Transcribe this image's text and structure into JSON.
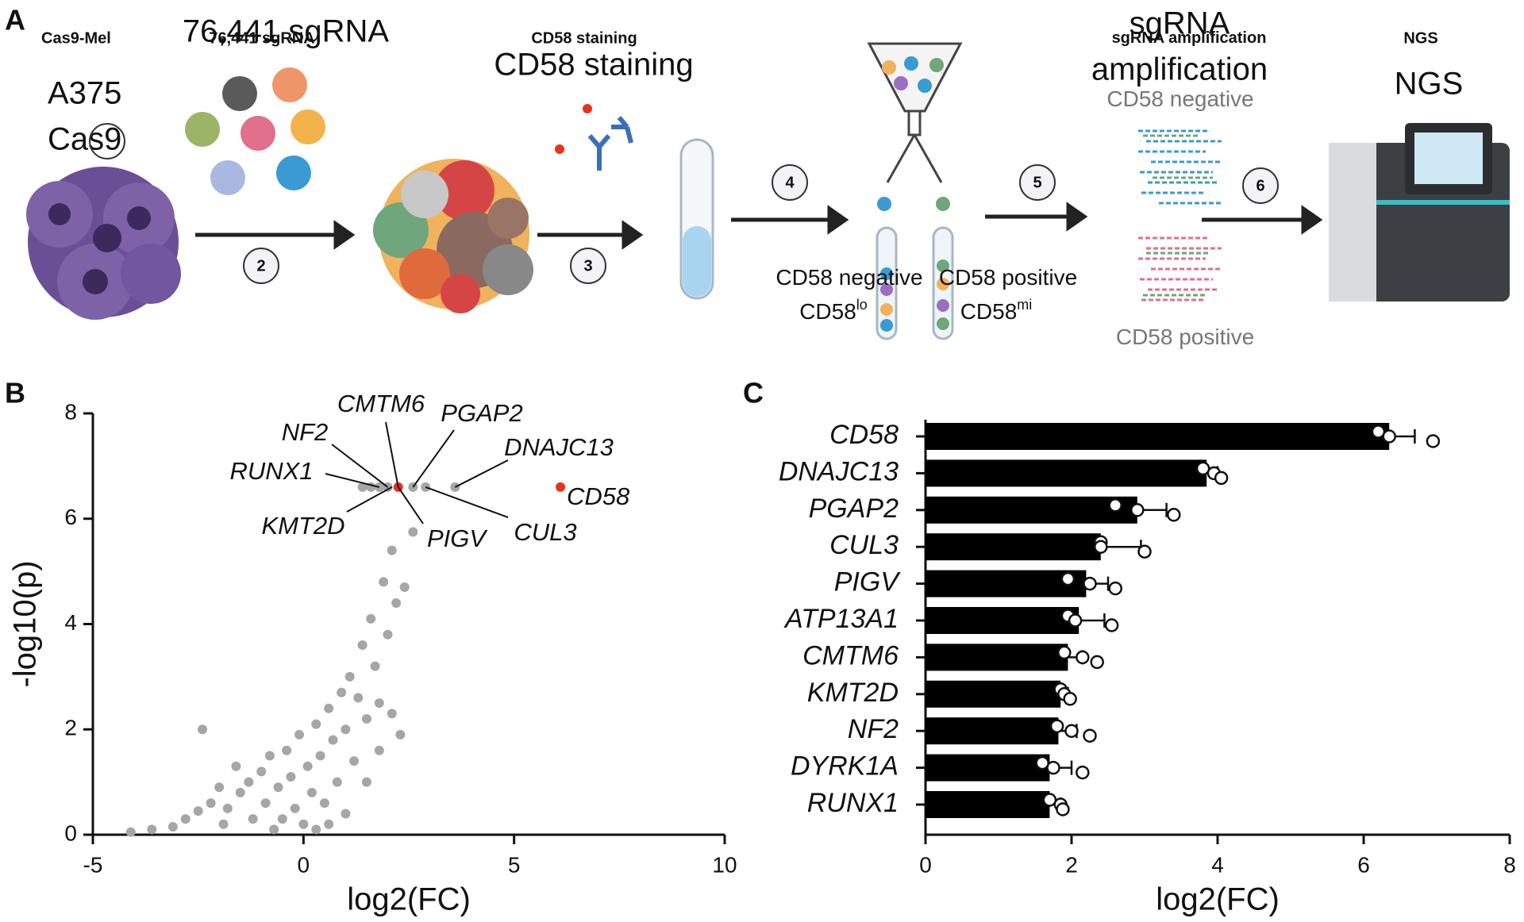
{
  "panel_a": {
    "letter": "A",
    "cas9_mel": "Cas9-Mel",
    "library": "76,441 sgRNA",
    "cell_line": [
      "A375",
      "Cas9"
    ],
    "staining": "CD58 staining",
    "amplification": [
      "sgRNA",
      "amplification"
    ],
    "ngs": "NGS",
    "negative": [
      "CD58",
      "negative"
    ],
    "positive": [
      "CD58",
      "positive"
    ],
    "low": {
      "base": "CD58",
      "sup": "lo"
    },
    "mid": {
      "base": "CD58",
      "sup": "mi"
    },
    "steps": [
      "2",
      "3",
      "4",
      "5",
      "6"
    ]
  },
  "panel_b": {
    "letter": "B"
  },
  "panel_c": {
    "letter": "C"
  },
  "chart_data": [
    {
      "type": "scatter",
      "x_label": "log2(FC)",
      "y_label": "-log10(p)",
      "xlim": [
        -5,
        10
      ],
      "xticks": [
        -5,
        0,
        5,
        10
      ],
      "ylim": [
        0,
        8
      ],
      "yticks": [
        0,
        2,
        4,
        6,
        8
      ],
      "series": [
        {
          "color": "#a6a6a6",
          "x": [
            -4.1,
            -3.6,
            -3.1,
            -2.8,
            -2.5,
            -2.4,
            -2.2,
            -2.0,
            -1.8,
            -1.6,
            -1.5,
            -1.3,
            -1.2,
            -1.0,
            -0.9,
            -0.8,
            -0.6,
            -0.5,
            -0.4,
            -0.3,
            -0.2,
            -0.1,
            0,
            0.1,
            0.2,
            0.3,
            0.4,
            0.5,
            0.6,
            0.7,
            0.8,
            0.9,
            1.0,
            1.1,
            1.2,
            1.3,
            1.4,
            1.5,
            1.6,
            1.7,
            1.8,
            1.9,
            2.0,
            2.1,
            2.2,
            2.4,
            1.5,
            1.8,
            2.1,
            2.3,
            0.3,
            -0.7,
            -1.9,
            1.0,
            0.6,
            1.4,
            1.6,
            1.8,
            2.0,
            2.6,
            2.9,
            3.6,
            2.6
          ],
          "values": [
            0.05,
            0.1,
            0.15,
            0.3,
            0.45,
            2.0,
            0.6,
            0.9,
            0.5,
            1.3,
            0.8,
            1.0,
            0.3,
            1.2,
            0.6,
            1.5,
            0.9,
            0.3,
            1.6,
            1.1,
            0.5,
            1.9,
            0.2,
            1.3,
            0.8,
            2.1,
            1.5,
            0.6,
            2.4,
            1.8,
            1.0,
            2.7,
            2.0,
            3.0,
            1.4,
            2.6,
            3.6,
            2.2,
            4.1,
            3.2,
            2.5,
            4.8,
            3.8,
            5.4,
            4.4,
            4.7,
            1.0,
            1.6,
            2.3,
            1.9,
            0.1,
            0.1,
            0.2,
            0.4,
            0.2,
            6.6,
            6.6,
            6.6,
            6.6,
            6.6,
            6.6,
            6.6,
            5.75
          ]
        },
        {
          "color": "#e8321e",
          "x": [
            2.25,
            6.1
          ],
          "values": [
            6.6,
            6.6
          ]
        }
      ],
      "annotations": [
        {
          "text": "CMTM6",
          "x": 2.25,
          "y": 6.6
        },
        {
          "text": "PGAP2",
          "x": 2.6,
          "y": 6.6
        },
        {
          "text": "NF2",
          "x": 2.0,
          "y": 6.6
        },
        {
          "text": "DNAJC13",
          "x": 3.6,
          "y": 6.6
        },
        {
          "text": "RUNX1",
          "x": 1.8,
          "y": 6.6
        },
        {
          "text": "CD58",
          "x": 6.1,
          "y": 6.6
        },
        {
          "text": "KMT2D",
          "x": 2.1,
          "y": 6.6
        },
        {
          "text": "PIGV",
          "x": 2.25,
          "y": 6.6
        },
        {
          "text": "CUL3",
          "x": 2.9,
          "y": 6.6
        }
      ]
    },
    {
      "type": "hbar",
      "x_label": "log2(FC)",
      "xlim": [
        0,
        8
      ],
      "xticks": [
        0,
        2,
        4,
        6,
        8
      ],
      "color": "#000000",
      "categories": [
        "CD58",
        "DNAJC13",
        "PGAP2",
        "CUL3",
        "PIGV",
        "ATP13A1",
        "CMTM6",
        "KMT2D",
        "NF2",
        "DYRK1A",
        "RUNX1"
      ],
      "values": [
        6.35,
        3.85,
        2.9,
        2.4,
        2.2,
        2.1,
        1.95,
        1.85,
        1.82,
        1.7,
        1.7
      ],
      "errors": [
        0.35,
        0.15,
        0.4,
        0.55,
        0.3,
        0.35,
        0.2,
        0.1,
        0.25,
        0.3,
        0.15
      ],
      "replicates": [
        [
          6.2,
          6.35,
          6.95
        ],
        [
          3.8,
          3.95,
          4.05
        ],
        [
          2.6,
          2.9,
          3.4
        ],
        [
          2.4,
          2.4,
          3.0
        ],
        [
          1.95,
          2.25,
          2.6
        ],
        [
          1.95,
          2.05,
          2.55
        ],
        [
          1.9,
          2.15,
          2.35
        ],
        [
          1.85,
          1.9,
          1.98
        ],
        [
          1.8,
          2.0,
          2.25
        ],
        [
          1.6,
          1.75,
          2.15
        ],
        [
          1.7,
          1.85,
          1.88
        ]
      ]
    }
  ]
}
